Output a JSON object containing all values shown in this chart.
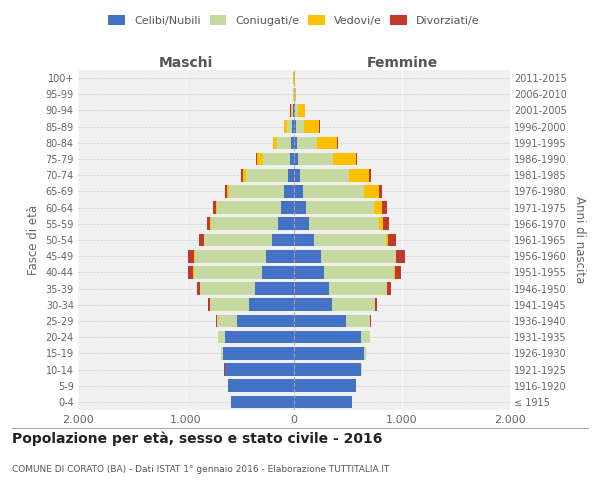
{
  "age_groups": [
    "100+",
    "95-99",
    "90-94",
    "85-89",
    "80-84",
    "75-79",
    "70-74",
    "65-69",
    "60-64",
    "55-59",
    "50-54",
    "45-49",
    "40-44",
    "35-39",
    "30-34",
    "25-29",
    "20-24",
    "15-19",
    "10-14",
    "5-9",
    "0-4"
  ],
  "birth_years": [
    "≤ 1915",
    "1916-1920",
    "1921-1925",
    "1926-1930",
    "1931-1935",
    "1936-1940",
    "1941-1945",
    "1946-1950",
    "1951-1955",
    "1956-1960",
    "1961-1965",
    "1966-1970",
    "1971-1975",
    "1976-1980",
    "1981-1985",
    "1986-1990",
    "1991-1995",
    "1996-2000",
    "2001-2005",
    "2006-2010",
    "2011-2015"
  ],
  "males": {
    "celibi": [
      3,
      4,
      8,
      15,
      25,
      40,
      60,
      90,
      120,
      150,
      200,
      260,
      300,
      360,
      420,
      530,
      640,
      660,
      640,
      610,
      580
    ],
    "coniugati": [
      1,
      3,
      12,
      50,
      130,
      250,
      380,
      510,
      590,
      620,
      630,
      660,
      630,
      510,
      360,
      180,
      60,
      15,
      3,
      1,
      1
    ],
    "vedovi": [
      1,
      4,
      12,
      25,
      35,
      55,
      28,
      18,
      12,
      8,
      4,
      4,
      4,
      3,
      2,
      1,
      1,
      0,
      0,
      0,
      0
    ],
    "divorziati": [
      0,
      0,
      1,
      4,
      5,
      8,
      22,
      18,
      28,
      28,
      48,
      58,
      48,
      28,
      18,
      8,
      4,
      1,
      1,
      0,
      0
    ]
  },
  "females": {
    "nubili": [
      3,
      4,
      8,
      15,
      25,
      40,
      55,
      85,
      110,
      140,
      185,
      250,
      280,
      320,
      350,
      480,
      620,
      650,
      620,
      570,
      540
    ],
    "coniugate": [
      1,
      3,
      25,
      80,
      185,
      320,
      450,
      560,
      630,
      650,
      670,
      690,
      650,
      540,
      400,
      220,
      80,
      20,
      5,
      2,
      1
    ],
    "vedove": [
      1,
      12,
      70,
      140,
      190,
      210,
      190,
      140,
      75,
      38,
      18,
      8,
      6,
      4,
      2,
      1,
      1,
      0,
      0,
      0,
      0
    ],
    "divorziate": [
      0,
      0,
      2,
      4,
      8,
      12,
      22,
      28,
      48,
      48,
      68,
      78,
      58,
      38,
      18,
      8,
      4,
      1,
      1,
      0,
      0
    ]
  },
  "colors": {
    "celibi": "#4472C4",
    "coniugati": "#c5d9a0",
    "vedovi": "#ffc000",
    "divorziati": "#c0392b"
  },
  "title": "Popolazione per età, sesso e stato civile - 2016",
  "subtitle": "COMUNE DI CORATO (BA) - Dati ISTAT 1° gennaio 2016 - Elaborazione TUTTITALIA.IT",
  "xlabel_left": "Maschi",
  "xlabel_right": "Femmine",
  "ylabel_left": "Fasce di età",
  "ylabel_right": "Anni di nascita",
  "xlim": 2000,
  "legend_labels": [
    "Celibi/Nubili",
    "Coniugati/e",
    "Vedovi/e",
    "Divorziati/e"
  ],
  "background_color": "#f0f0f0"
}
